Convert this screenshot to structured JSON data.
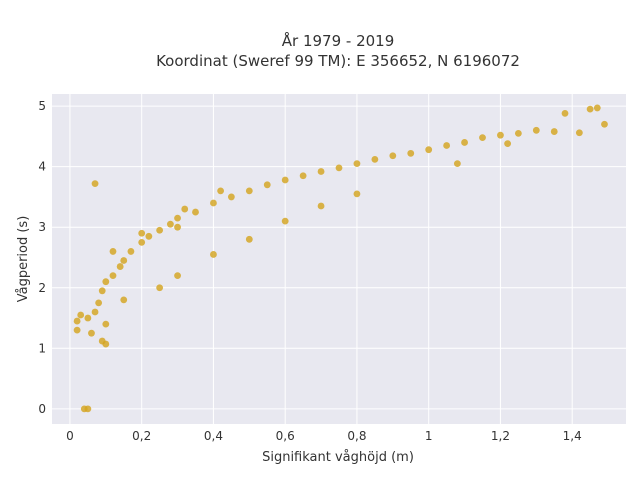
{
  "chart_data": {
    "type": "scatter",
    "title_line1": "År 1979 - 2019",
    "title_line2": "Koordinat (Sweref 99 TM): E 356652, N 6196072",
    "xlabel": "Signifikant våghöjd (m)",
    "ylabel": "Vågperiod (s)",
    "xlim": [
      -0.05,
      1.55
    ],
    "ylim": [
      -0.25,
      5.2
    ],
    "x_ticks": [
      0,
      0.2,
      0.4,
      0.6,
      0.8,
      1.0,
      1.2,
      1.4
    ],
    "x_tick_labels": [
      "0",
      "0,2",
      "0,4",
      "0,6",
      "0,8",
      "1",
      "1,2",
      "1,4"
    ],
    "y_ticks": [
      0,
      1,
      2,
      3,
      4,
      5
    ],
    "y_tick_labels": [
      "0",
      "1",
      "2",
      "3",
      "4",
      "5"
    ],
    "grid": true,
    "background": "#e8e8f0",
    "marker_color": "#d4a520",
    "points": [
      [
        0.04,
        0.0
      ],
      [
        0.05,
        0.0
      ],
      [
        0.07,
        3.72
      ],
      [
        0.09,
        1.12
      ],
      [
        0.1,
        1.07
      ],
      [
        0.02,
        1.3
      ],
      [
        0.02,
        1.45
      ],
      [
        0.03,
        1.55
      ],
      [
        0.05,
        1.5
      ],
      [
        0.07,
        1.6
      ],
      [
        0.08,
        1.75
      ],
      [
        0.09,
        1.95
      ],
      [
        0.1,
        2.1
      ],
      [
        0.12,
        2.2
      ],
      [
        0.14,
        2.35
      ],
      [
        0.15,
        2.45
      ],
      [
        0.17,
        2.6
      ],
      [
        0.2,
        2.75
      ],
      [
        0.22,
        2.85
      ],
      [
        0.25,
        2.95
      ],
      [
        0.28,
        3.05
      ],
      [
        0.3,
        3.15
      ],
      [
        0.35,
        3.25
      ],
      [
        0.4,
        3.4
      ],
      [
        0.45,
        3.5
      ],
      [
        0.5,
        3.6
      ],
      [
        0.55,
        3.7
      ],
      [
        0.6,
        3.78
      ],
      [
        0.65,
        3.85
      ],
      [
        0.7,
        3.92
      ],
      [
        0.75,
        3.98
      ],
      [
        0.8,
        4.05
      ],
      [
        0.85,
        4.12
      ],
      [
        0.9,
        4.18
      ],
      [
        0.95,
        4.22
      ],
      [
        1.0,
        4.28
      ],
      [
        1.05,
        4.35
      ],
      [
        1.1,
        4.4
      ],
      [
        1.15,
        4.48
      ],
      [
        1.2,
        4.52
      ],
      [
        1.25,
        4.55
      ],
      [
        1.3,
        4.6
      ],
      [
        1.35,
        4.58
      ],
      [
        1.38,
        4.88
      ],
      [
        1.42,
        4.56
      ],
      [
        1.45,
        4.95
      ],
      [
        1.47,
        4.97
      ],
      [
        1.49,
        4.7
      ],
      [
        1.22,
        4.38
      ],
      [
        1.08,
        4.05
      ],
      [
        0.25,
        2.0
      ],
      [
        0.3,
        2.2
      ],
      [
        0.4,
        2.55
      ],
      [
        0.5,
        2.8
      ],
      [
        0.6,
        3.1
      ],
      [
        0.7,
        3.35
      ],
      [
        0.8,
        3.55
      ],
      [
        0.15,
        1.8
      ],
      [
        0.1,
        1.4
      ],
      [
        0.06,
        1.25
      ],
      [
        0.32,
        3.3
      ],
      [
        0.42,
        3.6
      ],
      [
        0.3,
        3.0
      ],
      [
        0.12,
        2.6
      ],
      [
        0.2,
        2.9
      ]
    ]
  }
}
